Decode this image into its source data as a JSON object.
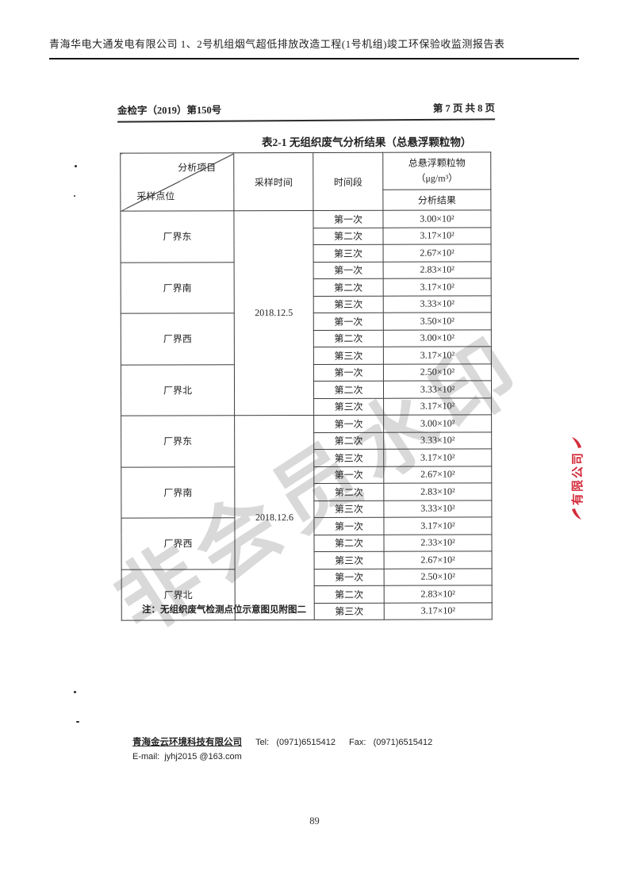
{
  "page": {
    "top_header": "青海华电大通发电有限公司 1、2号机组烟气超低排放改造工程(1号机组)竣工环保验收监测报告表",
    "doc_number": "金检字（2019）第150号",
    "page_indicator": "第 7 页 共 8 页",
    "page_number": "89"
  },
  "table": {
    "title": "表2-1  无组织废气分析结果（总悬浮颗粒物）",
    "header": {
      "diag_top": "分析项目",
      "diag_bottom": "采样点位",
      "col_time": "采样时间",
      "col_period": "时间段",
      "col_result_line1": "总悬浮颗粒物",
      "col_result_line2": "（μg/m³）",
      "col_result_sub": "分析结果"
    },
    "groups": [
      {
        "date": "2018.12.5",
        "points": [
          {
            "name": "厂界东",
            "readings": [
              {
                "period": "第一次",
                "value": "3.00×10²"
              },
              {
                "period": "第二次",
                "value": "3.17×10²"
              },
              {
                "period": "第三次",
                "value": "2.67×10²"
              }
            ]
          },
          {
            "name": "厂界南",
            "readings": [
              {
                "period": "第一次",
                "value": "2.83×10²"
              },
              {
                "period": "第二次",
                "value": "3.17×10²"
              },
              {
                "period": "第三次",
                "value": "3.33×10²"
              }
            ]
          },
          {
            "name": "厂界西",
            "readings": [
              {
                "period": "第一次",
                "value": "3.50×10²"
              },
              {
                "period": "第二次",
                "value": "3.00×10²"
              },
              {
                "period": "第三次",
                "value": "3.17×10²"
              }
            ]
          },
          {
            "name": "厂界北",
            "readings": [
              {
                "period": "第一次",
                "value": "2.50×10²"
              },
              {
                "period": "第二次",
                "value": "3.33×10²"
              },
              {
                "period": "第三次",
                "value": "3.17×10²"
              }
            ]
          }
        ]
      },
      {
        "date": "2018.12.6",
        "points": [
          {
            "name": "厂界东",
            "readings": [
              {
                "period": "第一次",
                "value": "3.00×10²"
              },
              {
                "period": "第二次",
                "value": "3.33×10²"
              },
              {
                "period": "第三次",
                "value": "3.17×10²"
              }
            ]
          },
          {
            "name": "厂界南",
            "readings": [
              {
                "period": "第一次",
                "value": "2.67×10²"
              },
              {
                "period": "第二次",
                "value": "2.83×10²"
              },
              {
                "period": "第三次",
                "value": "3.33×10²"
              }
            ]
          },
          {
            "name": "厂界西",
            "readings": [
              {
                "period": "第一次",
                "value": "3.17×10²"
              },
              {
                "period": "第二次",
                "value": "2.33×10²"
              },
              {
                "period": "第三次",
                "value": "2.67×10²"
              }
            ]
          },
          {
            "name": "厂界北",
            "readings": [
              {
                "period": "第一次",
                "value": "2.50×10²"
              },
              {
                "period": "第二次",
                "value": "2.83×10²"
              },
              {
                "period": "第三次",
                "value": "3.17×10²"
              }
            ]
          }
        ]
      }
    ],
    "note": "注：无组织废气检测点位示意图见附图二"
  },
  "footer": {
    "company": "青海金云环境科技有限公司",
    "tel_label": "Tel:",
    "tel": "(0971)6515412",
    "fax_label": "Fax:",
    "fax": "(0971)6515412",
    "email_label": "E-mail:",
    "email": "jyhj2015 @163.com"
  },
  "watermarks": {
    "gray_diagonal": "非会员水印",
    "red_side": "有限公司"
  }
}
